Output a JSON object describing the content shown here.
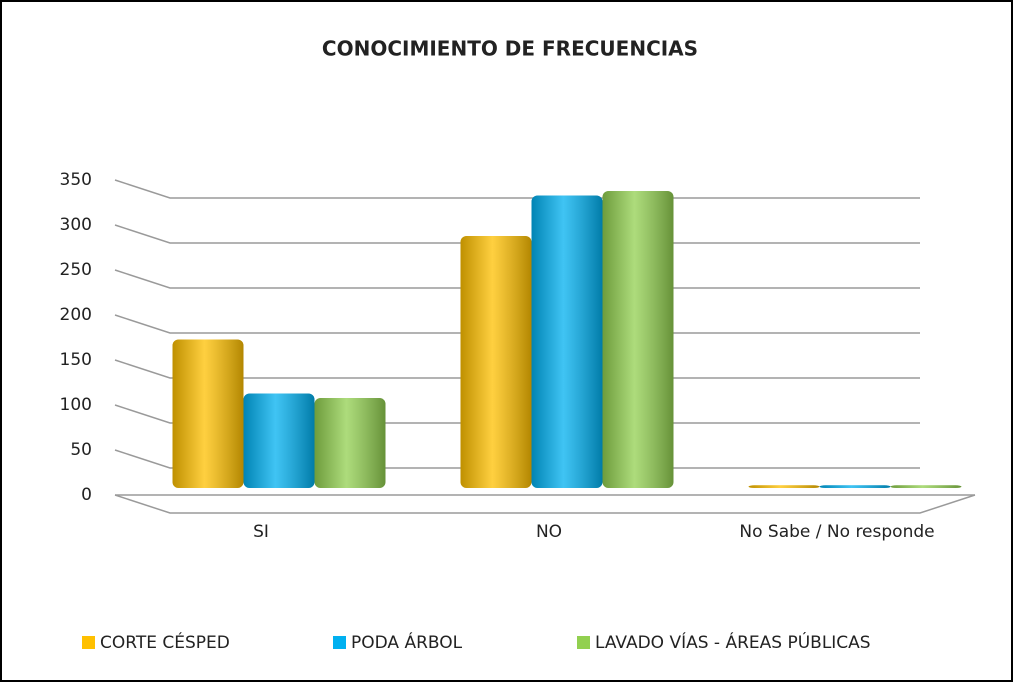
{
  "chart_data": {
    "type": "bar",
    "title": "CONOCIMIENTO DE FRECUENCIAS",
    "categories": [
      "SI",
      "NO",
      "No Sabe / No responde"
    ],
    "series": [
      {
        "name": "CORTE CÉSPED",
        "color": "#ffc000",
        "values": [
          165,
          280,
          3
        ]
      },
      {
        "name": "PODA ÁRBOL",
        "color": "#00b0f0",
        "values": [
          105,
          325,
          3
        ]
      },
      {
        "name": "LAVADO VÍAS - ÁREAS PÚBLICAS",
        "color": "#92d050",
        "values": [
          100,
          330,
          3
        ]
      }
    ],
    "ylim": [
      0,
      350
    ],
    "yticks": [
      0,
      50,
      100,
      150,
      200,
      250,
      300,
      350
    ],
    "grid": true,
    "legend": "bottom"
  }
}
